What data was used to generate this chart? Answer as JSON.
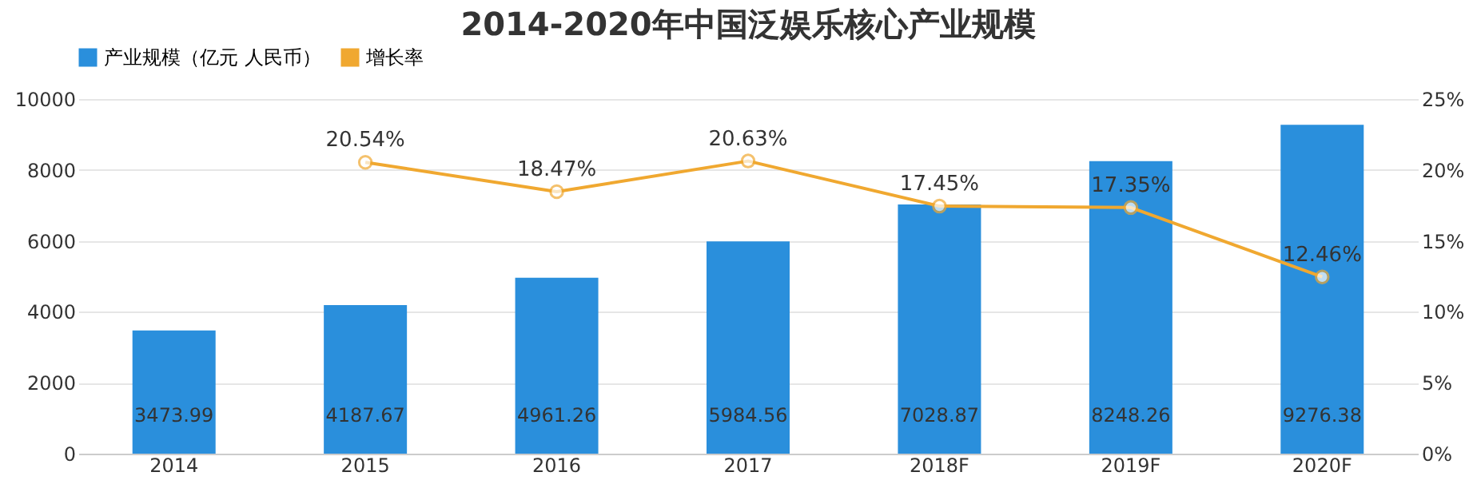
{
  "chart_data": {
    "type": "bar",
    "title": "2014-2020年中国泛娱乐核心产业规模",
    "categories": [
      "2014",
      "2015",
      "2016",
      "2017",
      "2018F",
      "2019F",
      "2020F"
    ],
    "series": [
      {
        "name": "产业规模（亿元 人民币）",
        "color": "#2a8fdc",
        "values": [
          3473.99,
          4187.67,
          4961.26,
          5984.56,
          7028.87,
          8248.26,
          9276.38
        ],
        "value_labels": [
          "3473.99",
          "4187.67",
          "4961.26",
          "5984.56",
          "7028.87",
          "8248.26",
          "9276.38"
        ]
      },
      {
        "name": "增长率",
        "type": "line",
        "axis": "y2",
        "color": "#f0a830",
        "values": [
          null,
          20.54,
          18.47,
          20.63,
          17.45,
          17.35,
          12.46
        ],
        "value_labels": [
          null,
          "20.54%",
          "18.47%",
          "20.63%",
          "17.45%",
          "17.35%",
          "12.46%"
        ]
      }
    ],
    "ylim": [
      0,
      10000
    ],
    "yticks": [
      0,
      2000,
      4000,
      6000,
      8000,
      10000
    ],
    "y2lim": [
      0,
      25
    ],
    "y2ticks": [
      {
        "value": 0,
        "label": "0%"
      },
      {
        "value": 5,
        "label": "5%"
      },
      {
        "value": 10,
        "label": "10%"
      },
      {
        "value": 15,
        "label": "15%"
      },
      {
        "value": 20,
        "label": "20%"
      },
      {
        "value": 25,
        "label": "25%"
      }
    ],
    "grid": "y",
    "legend": "top",
    "marker": "circle"
  }
}
